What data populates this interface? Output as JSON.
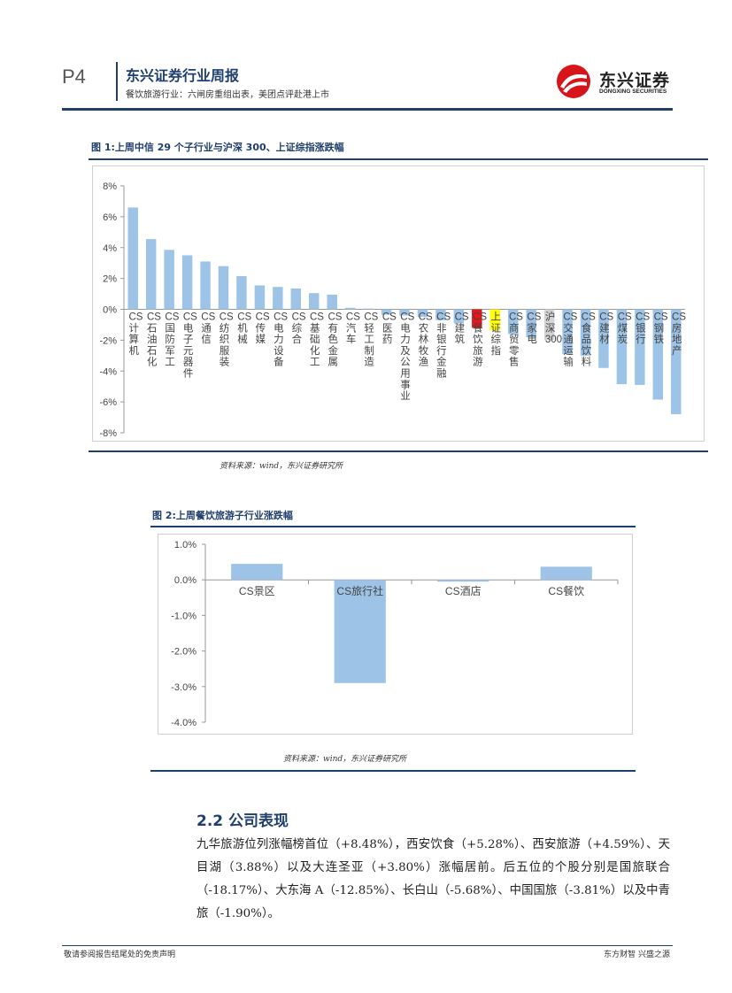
{
  "header": {
    "page_number": "P4",
    "title": "东兴证券行业周报",
    "subtitle": "餐饮旅游行业：六闸房重组出表，美团点评赴港上市",
    "logo_cn": "东兴证券",
    "logo_en": "DONGXING SECURITIES"
  },
  "figure1": {
    "title": "图 1:上周中信 29 个子行业与沪深 300、上证综指涨跌幅",
    "source": "资料来源：wind，东兴证券研究所"
  },
  "figure2": {
    "title": "图 2:上周餐饮旅游子行业涨跌幅",
    "source": "资料来源：wind，东兴证券研究所"
  },
  "chart_data": [
    {
      "type": "bar",
      "categories": [
        "CS计算机",
        "CS石油石化",
        "CS国防军工",
        "CS电子元器件",
        "CS通信",
        "CS纺织服装",
        "CS机械",
        "CS传媒",
        "CS电力设备",
        "CS综合",
        "CS基础化工",
        "CS有色金属",
        "CS汽车",
        "CS轻工制造",
        "CS医药",
        "CS电力及公用事业",
        "CS农林牧渔",
        "CS非银行金融",
        "CS建筑",
        "CS餐饮旅游",
        "上证综指",
        "CS商贸零售",
        "CS家电",
        "沪深300",
        "CS交通运输",
        "CS食品饮料",
        "CS建材",
        "CS煤炭",
        "CS银行",
        "CS钢铁",
        "CS房地产"
      ],
      "values": [
        6.6,
        4.55,
        3.85,
        3.5,
        3.1,
        2.8,
        2.15,
        1.55,
        1.45,
        1.35,
        1.05,
        0.95,
        0.1,
        0.05,
        -0.35,
        -0.4,
        -0.5,
        -0.7,
        -0.9,
        -1.2,
        -1.35,
        -1.6,
        -1.8,
        -2.0,
        -2.9,
        -3.0,
        -3.8,
        -4.85,
        -4.9,
        -5.85,
        -6.8
      ],
      "highlight": {
        "CS餐饮旅游": "#e8141b",
        "上证综指": "#ffff00",
        "沪深300": "#d3d3d3"
      },
      "bar_color": "#9dc3e6",
      "yticks": [
        "8%",
        "6%",
        "4%",
        "2%",
        "0%",
        "-2%",
        "-4%",
        "-6%",
        "-8%"
      ],
      "ylim": [
        -8,
        8
      ]
    },
    {
      "type": "bar",
      "categories": [
        "CS景区",
        "CS旅行社",
        "CS酒店",
        "CS餐饮"
      ],
      "values": [
        0.45,
        -2.9,
        -0.05,
        0.37
      ],
      "bar_color": "#9dc3e6",
      "yticks": [
        "1.0%",
        "0.0%",
        "-1.0%",
        "-2.0%",
        "-3.0%",
        "-4.0%"
      ],
      "ylim": [
        -4,
        1
      ]
    }
  ],
  "section": {
    "title": "2.2 公司表现",
    "body": "九华旅游位列涨幅榜首位（+8.48%），西安饮食（+5.28%）、西安旅游（+4.59%）、天目湖（3.88%）以及大连圣亚（+3.80%）涨幅居前。后五位的个股分别是国旅联合（-18.17%）、大东海 A（-12.85%）、长白山（-5.68%）、中国国旅（-3.81%）以及中青旅（-1.90%）。"
  },
  "footer": {
    "left": "敬请参阅报告结尾处的免责声明",
    "right": "东方财智 兴盛之源"
  }
}
